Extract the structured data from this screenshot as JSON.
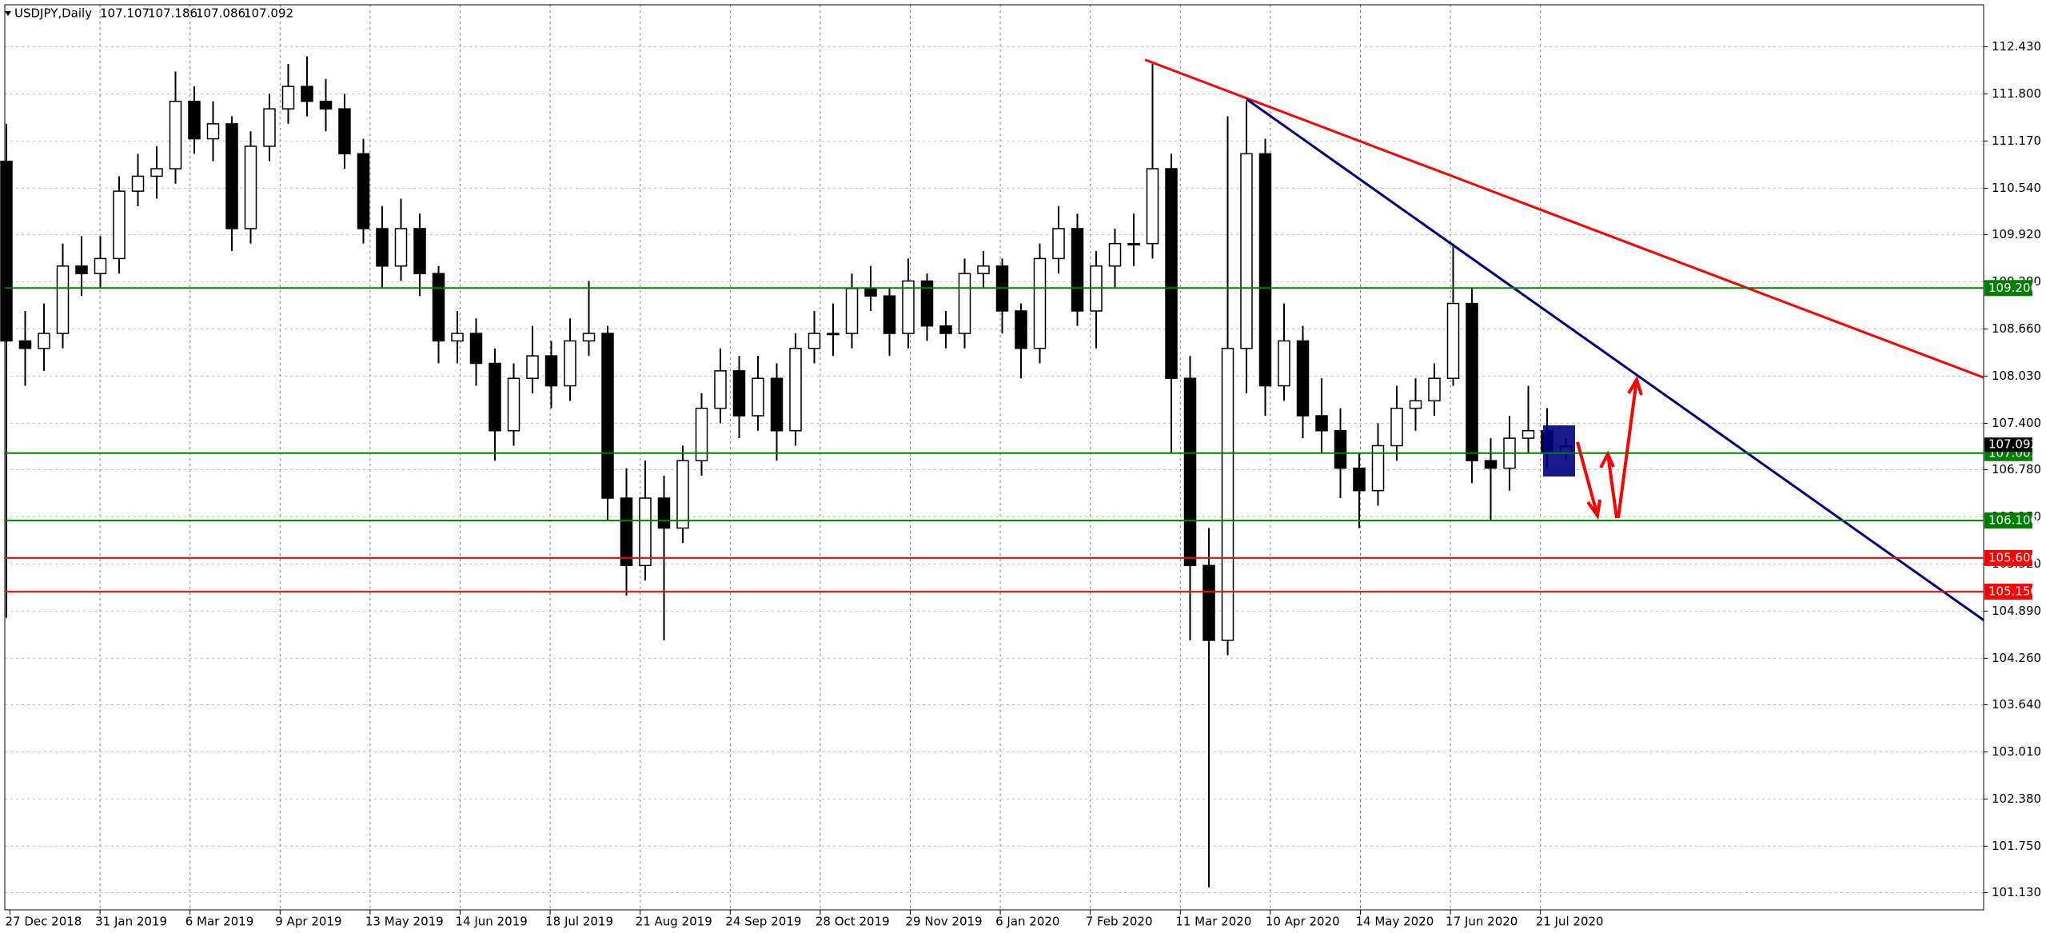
{
  "chart_data": {
    "type": "candlestick",
    "title": "USDJPY,Daily",
    "ohlc": [
      107.107,
      107.186,
      107.086,
      107.092
    ],
    "x_labels": [
      "27 Dec 2018",
      "31 Jan 2019",
      "6 Mar 2019",
      "9 Apr 2019",
      "13 May 2019",
      "14 Jun 2019",
      "18 Jul 2019",
      "21 Aug 2019",
      "24 Sep 2019",
      "28 Oct 2019",
      "29 Nov 2019",
      "6 Jan 2020",
      "7 Feb 2020",
      "11 Mar 2020",
      "10 Apr 2020",
      "14 May 2020",
      "17 Jun 2020",
      "21 Jul 2020"
    ],
    "candles": [
      [
        110.9,
        111.4,
        104.8,
        108.5
      ],
      [
        108.5,
        108.9,
        107.9,
        108.4
      ],
      [
        108.4,
        109.0,
        108.1,
        108.6
      ],
      [
        108.6,
        109.8,
        108.4,
        109.5
      ],
      [
        109.5,
        109.9,
        109.1,
        109.4
      ],
      [
        109.4,
        109.9,
        109.2,
        109.6
      ],
      [
        109.6,
        110.7,
        109.4,
        110.5
      ],
      [
        110.5,
        111.0,
        110.3,
        110.7
      ],
      [
        110.7,
        111.1,
        110.4,
        110.8
      ],
      [
        110.8,
        112.1,
        110.6,
        111.7
      ],
      [
        111.7,
        111.9,
        111.0,
        111.2
      ],
      [
        111.2,
        111.7,
        110.9,
        111.4
      ],
      [
        111.4,
        111.5,
        109.7,
        110.0
      ],
      [
        110.0,
        111.3,
        109.8,
        111.1
      ],
      [
        111.1,
        111.8,
        110.9,
        111.6
      ],
      [
        111.6,
        112.2,
        111.4,
        111.9
      ],
      [
        111.9,
        112.3,
        111.5,
        111.7
      ],
      [
        111.7,
        112.0,
        111.3,
        111.6
      ],
      [
        111.6,
        111.8,
        110.8,
        111.0
      ],
      [
        111.0,
        111.2,
        109.8,
        110.0
      ],
      [
        110.0,
        110.3,
        109.2,
        109.5
      ],
      [
        109.5,
        110.4,
        109.3,
        110.0
      ],
      [
        110.0,
        110.2,
        109.1,
        109.4
      ],
      [
        109.4,
        109.5,
        108.2,
        108.5
      ],
      [
        108.5,
        108.9,
        108.2,
        108.6
      ],
      [
        108.6,
        108.8,
        107.9,
        108.2
      ],
      [
        108.2,
        108.4,
        106.9,
        107.3
      ],
      [
        107.3,
        108.2,
        107.1,
        108.0
      ],
      [
        108.0,
        108.7,
        107.8,
        108.3
      ],
      [
        108.3,
        108.5,
        107.6,
        107.9
      ],
      [
        107.9,
        108.8,
        107.7,
        108.5
      ],
      [
        108.5,
        109.3,
        108.3,
        108.6
      ],
      [
        108.6,
        108.7,
        106.1,
        106.4
      ],
      [
        106.4,
        106.8,
        105.1,
        105.5
      ],
      [
        105.5,
        106.9,
        105.3,
        106.4
      ],
      [
        106.4,
        106.7,
        104.5,
        106.0
      ],
      [
        106.0,
        107.1,
        105.8,
        106.9
      ],
      [
        106.9,
        107.8,
        106.7,
        107.6
      ],
      [
        107.6,
        108.4,
        107.4,
        108.1
      ],
      [
        108.1,
        108.3,
        107.2,
        107.5
      ],
      [
        107.5,
        108.3,
        107.3,
        108.0
      ],
      [
        108.0,
        108.2,
        106.9,
        107.3
      ],
      [
        107.3,
        108.6,
        107.1,
        108.4
      ],
      [
        108.4,
        108.9,
        108.2,
        108.6
      ],
      [
        108.6,
        109.0,
        108.3,
        108.6
      ],
      [
        108.6,
        109.4,
        108.4,
        109.2
      ],
      [
        109.2,
        109.5,
        108.9,
        109.1
      ],
      [
        109.1,
        109.2,
        108.3,
        108.6
      ],
      [
        108.6,
        109.6,
        108.4,
        109.3
      ],
      [
        109.3,
        109.4,
        108.5,
        108.7
      ],
      [
        108.7,
        108.9,
        108.4,
        108.6
      ],
      [
        108.6,
        109.6,
        108.4,
        109.4
      ],
      [
        109.4,
        109.7,
        109.2,
        109.5
      ],
      [
        109.5,
        109.6,
        108.6,
        108.9
      ],
      [
        108.9,
        109.0,
        108.0,
        108.4
      ],
      [
        108.4,
        109.8,
        108.2,
        109.6
      ],
      [
        109.6,
        110.3,
        109.4,
        110.0
      ],
      [
        110.0,
        110.2,
        108.7,
        108.9
      ],
      [
        108.9,
        109.7,
        108.4,
        109.5
      ],
      [
        109.5,
        110.0,
        109.2,
        109.8
      ],
      [
        109.8,
        110.2,
        109.5,
        109.8
      ],
      [
        109.8,
        112.2,
        109.6,
        110.8
      ],
      [
        110.8,
        111.0,
        107.0,
        108.0
      ],
      [
        108.0,
        108.3,
        104.5,
        105.5
      ],
      [
        105.5,
        106.0,
        101.2,
        104.5
      ],
      [
        104.5,
        111.5,
        104.3,
        108.4
      ],
      [
        108.4,
        111.7,
        107.8,
        111.0
      ],
      [
        111.0,
        111.2,
        107.5,
        107.9
      ],
      [
        107.9,
        109.0,
        107.7,
        108.5
      ],
      [
        108.5,
        108.7,
        107.2,
        107.5
      ],
      [
        107.5,
        108.0,
        107.0,
        107.3
      ],
      [
        107.3,
        107.6,
        106.4,
        106.8
      ],
      [
        106.8,
        107.0,
        106.0,
        106.5
      ],
      [
        106.5,
        107.4,
        106.3,
        107.1
      ],
      [
        107.1,
        107.9,
        106.9,
        107.6
      ],
      [
        107.6,
        108.0,
        107.3,
        107.7
      ],
      [
        107.7,
        108.2,
        107.5,
        108.0
      ],
      [
        108.0,
        109.8,
        107.9,
        109.0
      ],
      [
        109.0,
        109.2,
        106.6,
        106.9
      ],
      [
        106.9,
        107.2,
        106.1,
        106.8
      ],
      [
        106.8,
        107.5,
        106.5,
        107.2
      ],
      [
        107.2,
        107.9,
        107.0,
        107.3
      ],
      [
        107.3,
        107.6,
        106.8,
        107.0
      ],
      [
        107.0,
        107.2,
        106.9,
        107.09
      ]
    ],
    "ylim": [
      100.9,
      112.99
    ],
    "yticks": [
      {
        "value": 112.43,
        "label": "112.430"
      },
      {
        "value": 111.8,
        "label": "111.800"
      },
      {
        "value": 111.17,
        "label": "111.170"
      },
      {
        "value": 110.54,
        "label": "110.540"
      },
      {
        "value": 109.92,
        "label": "109.920"
      },
      {
        "value": 109.29,
        "label": "109.290"
      },
      {
        "value": 108.66,
        "label": "108.660"
      },
      {
        "value": 108.03,
        "label": "108.030"
      },
      {
        "value": 107.4,
        "label": "107.400"
      },
      {
        "value": 106.78,
        "label": "106.780"
      },
      {
        "value": 106.15,
        "label": "106.150"
      },
      {
        "value": 105.52,
        "label": "105.520"
      },
      {
        "value": 104.89,
        "label": "104.890"
      },
      {
        "value": 104.26,
        "label": "104.260"
      },
      {
        "value": 103.64,
        "label": "103.640"
      },
      {
        "value": 103.01,
        "label": "103.010"
      },
      {
        "value": 102.38,
        "label": "102.380"
      },
      {
        "value": 101.75,
        "label": "101.750"
      },
      {
        "value": 101.13,
        "label": "101.130"
      }
    ],
    "grid": true,
    "levels": [
      {
        "value": 109.206,
        "label": "109.206",
        "color": "#008000"
      },
      {
        "value": 107.001,
        "label": "107.001",
        "color": "#008000"
      },
      {
        "value": 106.1,
        "label": "106.100",
        "color": "#008000"
      },
      {
        "value": 105.6,
        "label": "105.600",
        "color": "#ff0000"
      },
      {
        "value": 105.15,
        "label": "105.150",
        "color": "#ff0000"
      }
    ],
    "current_price": {
      "value": 107.092,
      "label": "107.092"
    },
    "trendlines": [
      {
        "from": 112.256,
        "to": 108.01,
        "color": "#ff0000"
      },
      {
        "from": 111.73,
        "to": 104.77,
        "color": "#000080"
      }
    ]
  }
}
